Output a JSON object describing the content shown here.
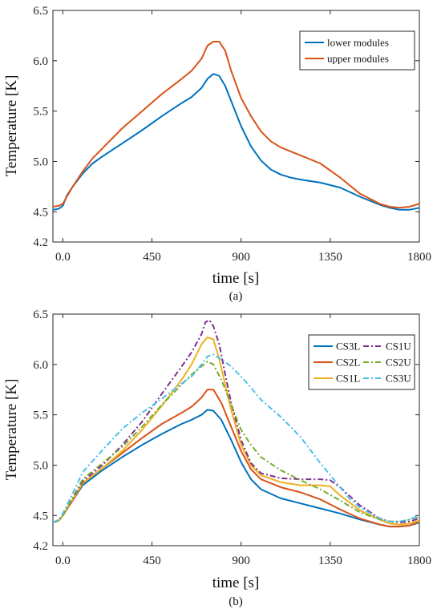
{
  "chart_data": [
    {
      "type": "line",
      "panel_label": "(a)",
      "xlabel": "time [s]",
      "ylabel": "Temperature [K]",
      "xlim": [
        -50,
        1800
      ],
      "ylim": [
        4.2,
        6.5
      ],
      "xticks": [
        0,
        450,
        900,
        1350,
        1800
      ],
      "xtick_labels": [
        "0.0",
        "450",
        "900",
        "1350",
        "1800"
      ],
      "yticks": [
        4.2,
        4.5,
        5.0,
        5.5,
        6.0,
        6.5
      ],
      "ytick_labels": [
        "4.2",
        "4.5",
        "5.0",
        "5.5",
        "6.0",
        "6.5"
      ],
      "grid": false,
      "legend_position": "top-right",
      "series": [
        {
          "name": "lower modules",
          "color": "#0072BD",
          "style": "solid",
          "x": [
            -50,
            -20,
            0,
            20,
            50,
            100,
            150,
            200,
            300,
            400,
            500,
            600,
            650,
            700,
            730,
            760,
            790,
            820,
            850,
            900,
            950,
            1000,
            1050,
            1100,
            1150,
            1200,
            1300,
            1400,
            1500,
            1600,
            1650,
            1700,
            1750,
            1800
          ],
          "y": [
            4.52,
            4.53,
            4.56,
            4.66,
            4.75,
            4.88,
            4.98,
            5.05,
            5.18,
            5.31,
            5.45,
            5.58,
            5.64,
            5.73,
            5.82,
            5.87,
            5.85,
            5.75,
            5.6,
            5.35,
            5.15,
            5.01,
            4.92,
            4.87,
            4.84,
            4.82,
            4.79,
            4.74,
            4.65,
            4.57,
            4.54,
            4.52,
            4.52,
            4.54
          ]
        },
        {
          "name": "upper modules",
          "color": "#D95319",
          "style": "solid",
          "x": [
            -50,
            -20,
            0,
            20,
            50,
            100,
            150,
            200,
            300,
            400,
            500,
            600,
            650,
            700,
            730,
            760,
            790,
            820,
            850,
            900,
            950,
            1000,
            1050,
            1100,
            1150,
            1200,
            1300,
            1400,
            1500,
            1600,
            1650,
            1700,
            1750,
            1800
          ],
          "y": [
            4.55,
            4.56,
            4.58,
            4.65,
            4.75,
            4.9,
            5.03,
            5.13,
            5.33,
            5.5,
            5.67,
            5.82,
            5.9,
            6.02,
            6.15,
            6.19,
            6.19,
            6.1,
            5.9,
            5.63,
            5.45,
            5.3,
            5.2,
            5.14,
            5.1,
            5.06,
            4.98,
            4.84,
            4.68,
            4.58,
            4.55,
            4.54,
            4.55,
            4.58
          ]
        }
      ]
    },
    {
      "type": "line",
      "panel_label": "(b)",
      "xlabel": "time [s]",
      "ylabel": "Temperature [K]",
      "xlim": [
        -50,
        1800
      ],
      "ylim": [
        4.2,
        6.5
      ],
      "xticks": [
        0,
        450,
        900,
        1350,
        1800
      ],
      "xtick_labels": [
        "0.0",
        "450",
        "900",
        "1350",
        "1800"
      ],
      "yticks": [
        4.2,
        4.5,
        5.0,
        5.5,
        6.0,
        6.5
      ],
      "ytick_labels": [
        "4.2",
        "4.5",
        "5.0",
        "5.5",
        "6.0",
        "6.5"
      ],
      "grid": false,
      "legend_position": "top-right",
      "legend_columns": 2,
      "series": [
        {
          "name": "CS3L",
          "color": "#0072BD",
          "style": "solid",
          "x": [
            -50,
            -20,
            0,
            50,
            100,
            200,
            300,
            400,
            500,
            600,
            650,
            700,
            730,
            760,
            800,
            850,
            900,
            950,
            1000,
            1100,
            1200,
            1300,
            1400,
            1500,
            1600,
            1650,
            1700,
            1750,
            1800
          ],
          "y": [
            4.43,
            4.45,
            4.5,
            4.65,
            4.8,
            4.95,
            5.08,
            5.2,
            5.31,
            5.41,
            5.45,
            5.5,
            5.55,
            5.54,
            5.45,
            5.25,
            5.03,
            4.86,
            4.76,
            4.67,
            4.62,
            4.57,
            4.52,
            4.46,
            4.41,
            4.39,
            4.39,
            4.4,
            4.43
          ]
        },
        {
          "name": "CS2L",
          "color": "#D95319",
          "style": "solid",
          "x": [
            -50,
            -20,
            0,
            50,
            100,
            200,
            300,
            400,
            500,
            600,
            650,
            700,
            730,
            760,
            800,
            850,
            900,
            950,
            1000,
            1100,
            1200,
            1300,
            1400,
            1500,
            1600,
            1650,
            1700,
            1750,
            1800
          ],
          "y": [
            4.43,
            4.45,
            4.5,
            4.65,
            4.82,
            4.97,
            5.12,
            5.27,
            5.41,
            5.52,
            5.58,
            5.67,
            5.75,
            5.75,
            5.62,
            5.38,
            5.14,
            4.96,
            4.86,
            4.78,
            4.73,
            4.66,
            4.56,
            4.47,
            4.41,
            4.39,
            4.39,
            4.4,
            4.44
          ]
        },
        {
          "name": "CS1L",
          "color": "#EDB120",
          "style": "solid",
          "x": [
            -50,
            -20,
            0,
            50,
            100,
            200,
            300,
            400,
            500,
            600,
            650,
            700,
            730,
            760,
            790,
            820,
            850,
            900,
            950,
            1000,
            1100,
            1200,
            1300,
            1350,
            1400,
            1500,
            1600,
            1650,
            1700,
            1750,
            1800
          ],
          "y": [
            4.43,
            4.45,
            4.5,
            4.66,
            4.82,
            4.97,
            5.14,
            5.35,
            5.59,
            5.85,
            6.0,
            6.2,
            6.27,
            6.25,
            6.05,
            5.8,
            5.55,
            5.2,
            5.0,
            4.9,
            4.83,
            4.8,
            4.8,
            4.79,
            4.7,
            4.55,
            4.46,
            4.42,
            4.41,
            4.42,
            4.45
          ]
        },
        {
          "name": "CS1U",
          "color": "#7E2F8E",
          "style": "dashdot",
          "x": [
            -50,
            -20,
            0,
            50,
            100,
            200,
            300,
            400,
            500,
            600,
            650,
            700,
            720,
            740,
            760,
            790,
            820,
            850,
            900,
            950,
            1000,
            1100,
            1200,
            1300,
            1350,
            1400,
            1500,
            1600,
            1650,
            1700,
            1750,
            1800
          ],
          "y": [
            4.43,
            4.45,
            4.5,
            4.67,
            4.84,
            5.0,
            5.2,
            5.43,
            5.71,
            5.98,
            6.12,
            6.3,
            6.42,
            6.44,
            6.38,
            6.2,
            5.9,
            5.62,
            5.25,
            5.02,
            4.92,
            4.87,
            4.86,
            4.86,
            4.85,
            4.78,
            4.6,
            4.47,
            4.44,
            4.43,
            4.44,
            4.47
          ]
        },
        {
          "name": "CS2U",
          "color": "#77AC30",
          "style": "dashdot",
          "x": [
            -50,
            -20,
            0,
            50,
            100,
            200,
            300,
            400,
            500,
            600,
            650,
            700,
            730,
            760,
            800,
            850,
            900,
            950,
            1000,
            1100,
            1200,
            1300,
            1400,
            1500,
            1600,
            1650,
            1700,
            1750,
            1800
          ],
          "y": [
            4.43,
            4.45,
            4.5,
            4.68,
            4.86,
            5.02,
            5.18,
            5.38,
            5.6,
            5.8,
            5.9,
            5.98,
            6.03,
            6.0,
            5.85,
            5.6,
            5.35,
            5.2,
            5.08,
            4.95,
            4.85,
            4.76,
            4.65,
            4.53,
            4.46,
            4.44,
            4.44,
            4.46,
            4.49
          ]
        },
        {
          "name": "CS3U",
          "color": "#4DBEEE",
          "style": "dashdot",
          "x": [
            -50,
            -20,
            0,
            50,
            100,
            200,
            300,
            400,
            500,
            600,
            650,
            700,
            730,
            760,
            800,
            850,
            900,
            950,
            1000,
            1100,
            1200,
            1300,
            1400,
            1450,
            1500,
            1600,
            1650,
            1700,
            1750,
            1800
          ],
          "y": [
            4.43,
            4.46,
            4.52,
            4.72,
            4.93,
            5.15,
            5.36,
            5.52,
            5.66,
            5.81,
            5.88,
            6.0,
            6.08,
            6.1,
            6.05,
            5.98,
            5.88,
            5.77,
            5.65,
            5.48,
            5.28,
            5.02,
            4.78,
            4.66,
            4.58,
            4.47,
            4.44,
            4.44,
            4.46,
            4.5
          ]
        }
      ]
    }
  ]
}
